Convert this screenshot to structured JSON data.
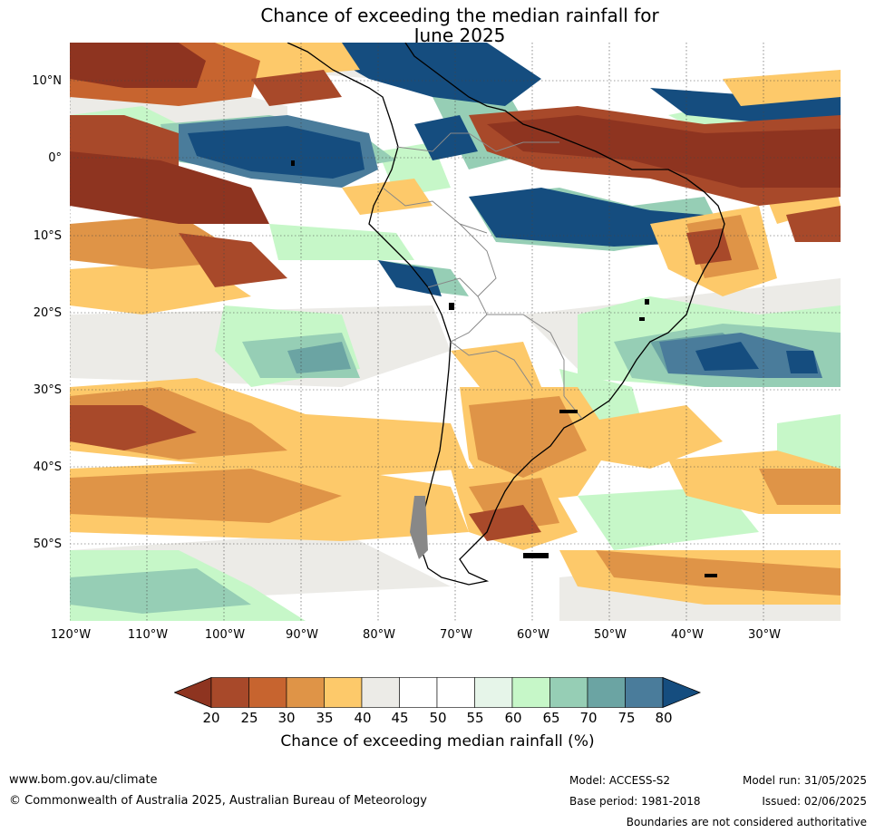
{
  "title": {
    "line1": "Chance of exceeding the median rainfall for",
    "line2": "June 2025"
  },
  "map": {
    "region": "South America",
    "lat_labels": [
      "10°N",
      "0°",
      "10°S",
      "20°S",
      "30°S",
      "40°S",
      "50°S"
    ],
    "lon_labels": [
      "120°W",
      "110°W",
      "100°W",
      "90°W",
      "80°W",
      "70°W",
      "60°W",
      "50°W",
      "40°W",
      "30°W"
    ],
    "gridlines": true
  },
  "colorbar": {
    "ticks": [
      "20",
      "25",
      "30",
      "35",
      "40",
      "45",
      "50",
      "55",
      "60",
      "65",
      "70",
      "75",
      "80"
    ],
    "colors": [
      "#8e3420",
      "#a8492a",
      "#c7642f",
      "#df9447",
      "#fdc96a",
      "#ecebe7",
      "#ffffff",
      "#ffffff",
      "#e6f5e9",
      "#c6f7c8",
      "#96ceb5",
      "#6ba4a3",
      "#4a7c9b",
      "#154d7f"
    ],
    "label": "Chance of exceeding median rainfall (%)"
  },
  "footer": {
    "website": "www.bom.gov.au/climate",
    "copyright": "© Commonwealth of Australia 2025, Australian Bureau of Meteorology",
    "model": "Model: ACCESS-S2",
    "base_period": "Base period: 1981-2018",
    "model_run": "Model run: 31/05/2025",
    "issued": "Issued: 02/06/2025",
    "disclaimer": "Boundaries are not considered authoritative"
  }
}
